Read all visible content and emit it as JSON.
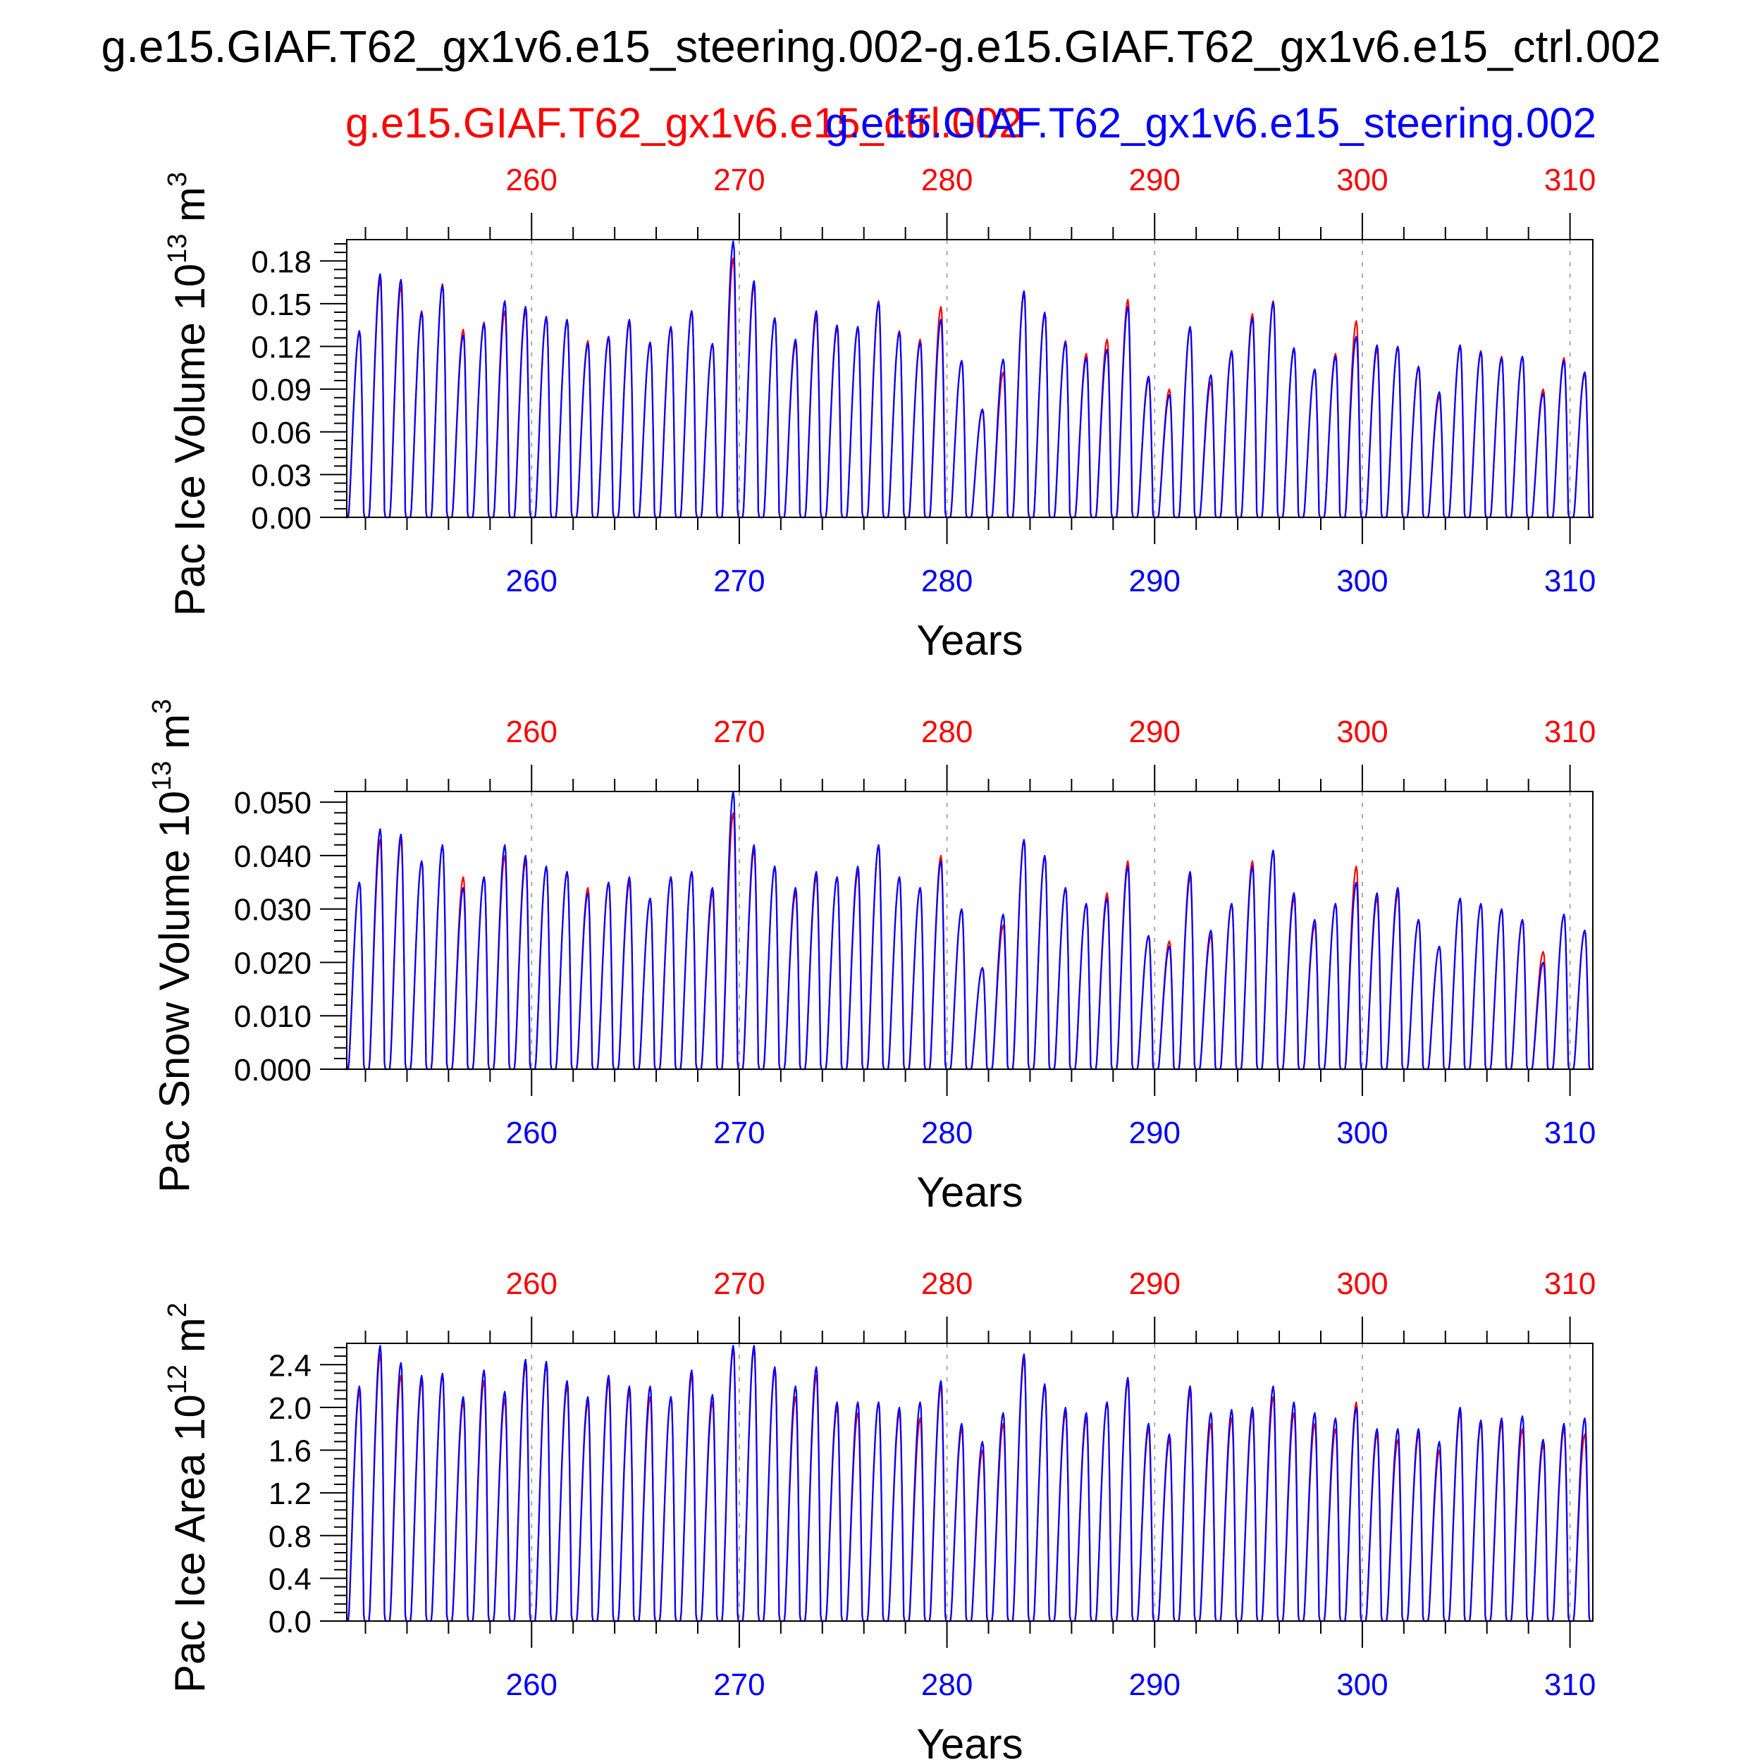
{
  "title": "g.e15.GIAF.T62_gx1v6.e15_steering.002-g.e15.GIAF.T62_gx1v6.e15_ctrl.002",
  "legend": {
    "ctrl": "g.e15.GIAF.T62_gx1v6.e15_ctrl.002",
    "steering": "g.e15.GIAF.T62_gx1v6.e15_steering.002"
  },
  "colors": {
    "ctrl": "#ff0000",
    "steering": "#0000ff",
    "axis": "#000000",
    "grid": "#aaaaaa"
  },
  "chart_data": [
    {
      "type": "line",
      "ylabel": "Pac Ice Volume 10",
      "ylabel_exp": "13",
      "ylabel_unit": " m",
      "ylabel_unit_exp": "3",
      "xlabel": "Years",
      "xlim": [
        251.1,
        311.1
      ],
      "ylim": [
        0.0,
        0.195
      ],
      "yticks": [
        "0.00",
        "0.03",
        "0.06",
        "0.09",
        "0.12",
        "0.15",
        "0.18"
      ],
      "xticks": [
        "260",
        "270",
        "280",
        "290",
        "300",
        "310"
      ],
      "x_start": 251,
      "x_end": 311,
      "series": [
        {
          "key": "ctrl",
          "values": [
            0.13,
            0.167,
            0.162,
            0.145,
            0.164,
            0.132,
            0.137,
            0.145,
            0.145,
            0.14,
            0.138,
            0.124,
            0.126,
            0.137,
            0.122,
            0.133,
            0.145,
            0.122,
            0.182,
            0.163,
            0.14,
            0.122,
            0.141,
            0.133,
            0.133,
            0.152,
            0.131,
            0.125,
            0.148,
            0.11,
            0.075,
            0.102,
            0.157,
            0.143,
            0.124,
            0.115,
            0.125,
            0.153,
            0.097,
            0.09,
            0.133,
            0.095,
            0.116,
            0.143,
            0.152,
            0.118,
            0.104,
            0.115,
            0.138,
            0.118,
            0.12,
            0.105,
            0.085,
            0.12,
            0.117,
            0.113,
            0.113,
            0.09,
            0.112,
            0.101
          ]
        },
        {
          "key": "steering",
          "values": [
            0.131,
            0.171,
            0.167,
            0.144,
            0.163,
            0.128,
            0.136,
            0.152,
            0.148,
            0.141,
            0.139,
            0.122,
            0.127,
            0.139,
            0.123,
            0.134,
            0.145,
            0.122,
            0.194,
            0.166,
            0.14,
            0.125,
            0.145,
            0.135,
            0.134,
            0.151,
            0.13,
            0.123,
            0.139,
            0.11,
            0.076,
            0.111,
            0.159,
            0.144,
            0.123,
            0.112,
            0.118,
            0.148,
            0.099,
            0.086,
            0.134,
            0.1,
            0.117,
            0.14,
            0.151,
            0.119,
            0.104,
            0.113,
            0.127,
            0.121,
            0.12,
            0.106,
            0.088,
            0.121,
            0.116,
            0.112,
            0.113,
            0.087,
            0.11,
            0.102
          ]
        }
      ]
    },
    {
      "type": "line",
      "ylabel": "Pac Snow Volume 10",
      "ylabel_exp": "13",
      "ylabel_unit": " m",
      "ylabel_unit_exp": "3",
      "xlabel": "Years",
      "xlim": [
        251.1,
        311.1
      ],
      "ylim": [
        0.0,
        0.052
      ],
      "yticks": [
        "0.000",
        "0.010",
        "0.020",
        "0.030",
        "0.040",
        "0.050"
      ],
      "xticks": [
        "260",
        "270",
        "280",
        "290",
        "300",
        "310"
      ],
      "x_start": 251,
      "x_end": 311,
      "series": [
        {
          "key": "ctrl",
          "values": [
            0.035,
            0.043,
            0.043,
            0.039,
            0.042,
            0.036,
            0.036,
            0.04,
            0.039,
            0.038,
            0.037,
            0.034,
            0.035,
            0.035,
            0.032,
            0.036,
            0.037,
            0.033,
            0.048,
            0.041,
            0.038,
            0.033,
            0.036,
            0.036,
            0.037,
            0.042,
            0.036,
            0.034,
            0.04,
            0.03,
            0.019,
            0.027,
            0.043,
            0.04,
            0.034,
            0.031,
            0.033,
            0.039,
            0.025,
            0.024,
            0.036,
            0.025,
            0.031,
            0.039,
            0.041,
            0.032,
            0.027,
            0.031,
            0.038,
            0.032,
            0.033,
            0.028,
            0.023,
            0.032,
            0.031,
            0.03,
            0.028,
            0.022,
            0.029,
            0.026
          ]
        },
        {
          "key": "steering",
          "values": [
            0.035,
            0.045,
            0.044,
            0.039,
            0.042,
            0.034,
            0.036,
            0.042,
            0.04,
            0.038,
            0.037,
            0.033,
            0.035,
            0.036,
            0.032,
            0.036,
            0.037,
            0.034,
            0.052,
            0.042,
            0.038,
            0.034,
            0.037,
            0.036,
            0.038,
            0.042,
            0.036,
            0.034,
            0.039,
            0.03,
            0.019,
            0.029,
            0.043,
            0.04,
            0.034,
            0.031,
            0.032,
            0.038,
            0.025,
            0.023,
            0.037,
            0.026,
            0.031,
            0.038,
            0.041,
            0.033,
            0.028,
            0.031,
            0.035,
            0.033,
            0.034,
            0.028,
            0.023,
            0.032,
            0.031,
            0.03,
            0.028,
            0.02,
            0.029,
            0.026
          ]
        }
      ]
    },
    {
      "type": "line",
      "ylabel": "Pac Ice Area 10",
      "ylabel_exp": "12",
      "ylabel_unit": " m",
      "ylabel_unit_exp": "2",
      "xlabel": "Years",
      "xlim": [
        251.1,
        311.1
      ],
      "ylim": [
        0.0,
        2.6
      ],
      "yticks": [
        "0.0",
        "0.4",
        "0.8",
        "1.2",
        "1.6",
        "2.0",
        "2.4"
      ],
      "xticks": [
        "260",
        "270",
        "280",
        "290",
        "300",
        "310"
      ],
      "x_start": 251,
      "x_end": 311,
      "series": [
        {
          "key": "ctrl",
          "values": [
            2.15,
            2.5,
            2.3,
            2.25,
            2.3,
            2.05,
            2.25,
            2.08,
            2.4,
            2.4,
            2.2,
            2.05,
            2.25,
            2.15,
            2.1,
            2.1,
            2.3,
            2.05,
            2.55,
            2.55,
            2.35,
            2.1,
            2.3,
            2.0,
            1.95,
            2.05,
            1.95,
            1.9,
            2.2,
            1.8,
            1.6,
            1.85,
            2.45,
            2.2,
            1.95,
            1.9,
            2.05,
            2.25,
            1.8,
            1.7,
            2.15,
            1.85,
            1.9,
            1.95,
            2.1,
            1.95,
            1.85,
            1.8,
            2.05,
            1.75,
            1.7,
            1.75,
            1.6,
            1.95,
            1.85,
            1.85,
            1.8,
            1.65,
            1.8,
            1.75
          ]
        },
        {
          "key": "steering",
          "values": [
            2.2,
            2.58,
            2.42,
            2.3,
            2.32,
            2.1,
            2.35,
            2.15,
            2.45,
            2.43,
            2.25,
            2.1,
            2.3,
            2.2,
            2.2,
            2.1,
            2.35,
            2.12,
            2.58,
            2.58,
            2.38,
            2.2,
            2.38,
            2.05,
            2.05,
            2.05,
            2.0,
            2.05,
            2.25,
            1.85,
            1.68,
            1.95,
            2.5,
            2.22,
            2.0,
            1.95,
            2.05,
            2.28,
            1.85,
            1.75,
            2.2,
            1.95,
            1.98,
            2.0,
            2.2,
            2.05,
            1.95,
            1.9,
            2.0,
            1.8,
            1.8,
            1.8,
            1.68,
            2.0,
            1.88,
            1.9,
            1.92,
            1.7,
            1.85,
            1.9
          ]
        }
      ]
    }
  ]
}
